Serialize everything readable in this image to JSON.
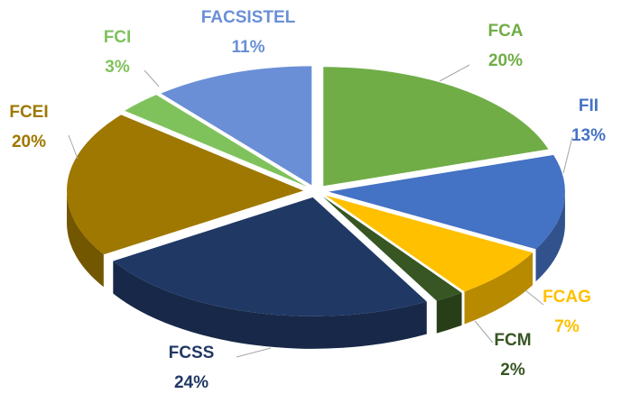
{
  "chart_data": {
    "type": "pie",
    "categories": [
      "FCA",
      "FII",
      "FCAG",
      "FCM",
      "FCSS",
      "FCEI",
      "FCI",
      "FACSISTEL"
    ],
    "values": [
      20,
      13,
      7,
      2,
      24,
      20,
      3,
      11
    ],
    "value_labels": [
      "20%",
      "13%",
      "7%",
      "2%",
      "24%",
      "20%",
      "3%",
      "11%"
    ],
    "colors": [
      "#70ad47",
      "#4472c4",
      "#ffc000",
      "#375623",
      "#203864",
      "#9e7800",
      "#7fc25c",
      "#6a8fd6"
    ]
  }
}
